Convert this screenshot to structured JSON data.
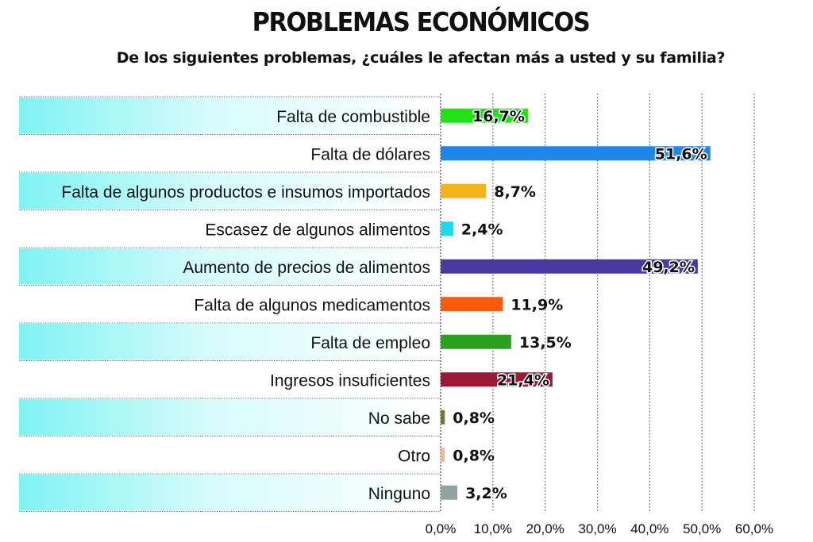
{
  "title": "PROBLEMAS ECONÓMICOS",
  "subtitle": "De los siguientes problemas, ¿cuáles le afectan más a usted y su familia?",
  "chart_data": {
    "type": "bar",
    "orientation": "horizontal",
    "categories": [
      "Falta de combustible",
      "Falta de dólares",
      "Falta de algunos productos e insumos importados",
      "Escasez de algunos alimentos",
      "Aumento de precios de alimentos",
      "Falta de algunos medicamentos",
      "Falta de empleo",
      "Ingresos insuficientes",
      "No sabe",
      "Otro",
      "Ninguno"
    ],
    "values": [
      16.7,
      51.6,
      8.7,
      2.4,
      49.2,
      11.9,
      13.5,
      21.4,
      0.8,
      0.8,
      3.2
    ],
    "value_labels": [
      "16,7%",
      "51,6%",
      "8,7%",
      "2,4%",
      "49,2%",
      "11,9%",
      "13,5%",
      "21,4%",
      "0,8%",
      "0,8%",
      "3,2%"
    ],
    "colors": [
      "#22e01a",
      "#1f86ec",
      "#f6b21b",
      "#1ed8ec",
      "#4a3aa6",
      "#fd5a0e",
      "#27a11e",
      "#9c1a36",
      "#6d7a2a",
      "#f5b39a",
      "#8fa3a0"
    ],
    "x_ticks": [
      "0,0%",
      "10,0%",
      "20,0%",
      "30,0%",
      "40,0%",
      "50,0%",
      "60,0%"
    ],
    "xlim": [
      0,
      60
    ],
    "grid": true,
    "label_band_color": "#7ff3f3"
  }
}
